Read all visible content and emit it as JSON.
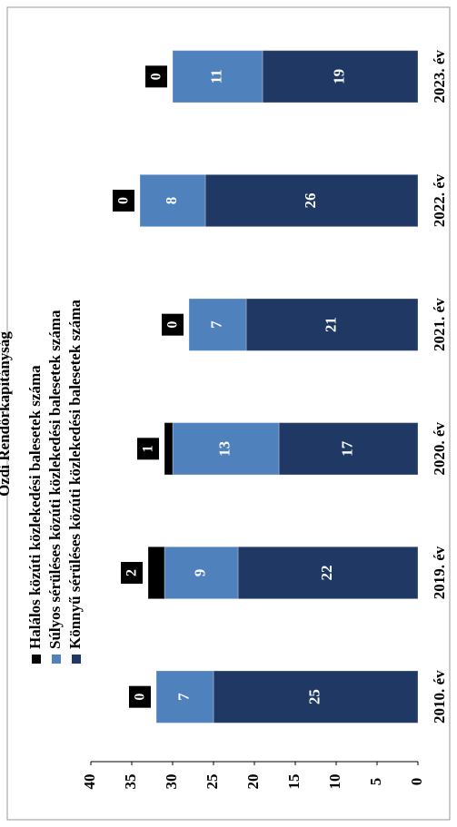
{
  "chart_data": {
    "type": "stacked_bar",
    "title": "Ózdi Rendőrkapitányság",
    "categories": [
      "2010. év",
      "2019. év",
      "2020. év",
      "2021. év",
      "2022. év",
      "2023. év"
    ],
    "series": [
      {
        "name": "Könnyű sérüléses közúti közlekedési balesetek száma",
        "color": "#1f3864",
        "values": [
          25,
          22,
          17,
          21,
          26,
          19
        ]
      },
      {
        "name": "Súlyos sérüléses közúti közlekedési balesetek száma",
        "color": "#4f81bd",
        "values": [
          7,
          9,
          13,
          7,
          8,
          11
        ]
      },
      {
        "name": "Halálos közúti közlekedési balesetek száma",
        "color": "#000000",
        "values": [
          0,
          2,
          1,
          0,
          0,
          0
        ]
      }
    ],
    "ylim": [
      0,
      40
    ],
    "yticks": [
      0,
      5,
      10,
      15,
      20,
      25,
      30,
      35,
      40
    ]
  }
}
